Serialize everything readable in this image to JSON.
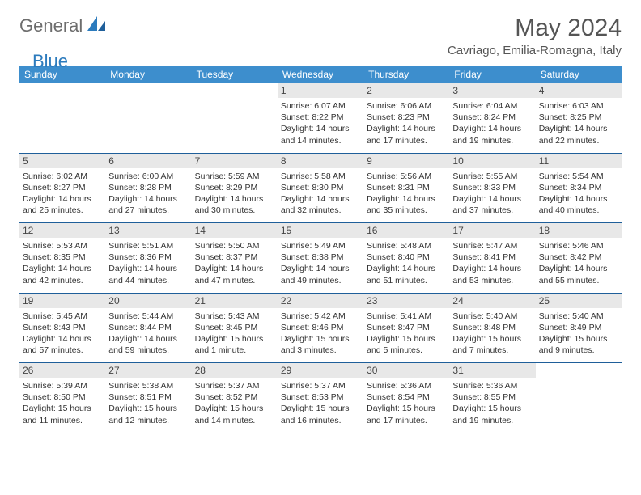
{
  "brand": {
    "part1": "General",
    "part2": "Blue"
  },
  "title": "May 2024",
  "location": "Cavriago, Emilia-Romagna, Italy",
  "colors": {
    "header_bg": "#3d8ecd",
    "header_text": "#ffffff",
    "daynum_bg": "#e8e8e8",
    "week_border": "#1f5f9a",
    "title_color": "#555555",
    "body_text": "#333333",
    "brand_gray": "#6d6d6d",
    "brand_blue": "#2c7bbd",
    "page_bg": "#ffffff"
  },
  "day_headers": [
    "Sunday",
    "Monday",
    "Tuesday",
    "Wednesday",
    "Thursday",
    "Friday",
    "Saturday"
  ],
  "weeks": [
    [
      {
        "n": "",
        "sr": "",
        "ss": "",
        "dl": ""
      },
      {
        "n": "",
        "sr": "",
        "ss": "",
        "dl": ""
      },
      {
        "n": "",
        "sr": "",
        "ss": "",
        "dl": ""
      },
      {
        "n": "1",
        "sr": "Sunrise: 6:07 AM",
        "ss": "Sunset: 8:22 PM",
        "dl": "Daylight: 14 hours and 14 minutes."
      },
      {
        "n": "2",
        "sr": "Sunrise: 6:06 AM",
        "ss": "Sunset: 8:23 PM",
        "dl": "Daylight: 14 hours and 17 minutes."
      },
      {
        "n": "3",
        "sr": "Sunrise: 6:04 AM",
        "ss": "Sunset: 8:24 PM",
        "dl": "Daylight: 14 hours and 19 minutes."
      },
      {
        "n": "4",
        "sr": "Sunrise: 6:03 AM",
        "ss": "Sunset: 8:25 PM",
        "dl": "Daylight: 14 hours and 22 minutes."
      }
    ],
    [
      {
        "n": "5",
        "sr": "Sunrise: 6:02 AM",
        "ss": "Sunset: 8:27 PM",
        "dl": "Daylight: 14 hours and 25 minutes."
      },
      {
        "n": "6",
        "sr": "Sunrise: 6:00 AM",
        "ss": "Sunset: 8:28 PM",
        "dl": "Daylight: 14 hours and 27 minutes."
      },
      {
        "n": "7",
        "sr": "Sunrise: 5:59 AM",
        "ss": "Sunset: 8:29 PM",
        "dl": "Daylight: 14 hours and 30 minutes."
      },
      {
        "n": "8",
        "sr": "Sunrise: 5:58 AM",
        "ss": "Sunset: 8:30 PM",
        "dl": "Daylight: 14 hours and 32 minutes."
      },
      {
        "n": "9",
        "sr": "Sunrise: 5:56 AM",
        "ss": "Sunset: 8:31 PM",
        "dl": "Daylight: 14 hours and 35 minutes."
      },
      {
        "n": "10",
        "sr": "Sunrise: 5:55 AM",
        "ss": "Sunset: 8:33 PM",
        "dl": "Daylight: 14 hours and 37 minutes."
      },
      {
        "n": "11",
        "sr": "Sunrise: 5:54 AM",
        "ss": "Sunset: 8:34 PM",
        "dl": "Daylight: 14 hours and 40 minutes."
      }
    ],
    [
      {
        "n": "12",
        "sr": "Sunrise: 5:53 AM",
        "ss": "Sunset: 8:35 PM",
        "dl": "Daylight: 14 hours and 42 minutes."
      },
      {
        "n": "13",
        "sr": "Sunrise: 5:51 AM",
        "ss": "Sunset: 8:36 PM",
        "dl": "Daylight: 14 hours and 44 minutes."
      },
      {
        "n": "14",
        "sr": "Sunrise: 5:50 AM",
        "ss": "Sunset: 8:37 PM",
        "dl": "Daylight: 14 hours and 47 minutes."
      },
      {
        "n": "15",
        "sr": "Sunrise: 5:49 AM",
        "ss": "Sunset: 8:38 PM",
        "dl": "Daylight: 14 hours and 49 minutes."
      },
      {
        "n": "16",
        "sr": "Sunrise: 5:48 AM",
        "ss": "Sunset: 8:40 PM",
        "dl": "Daylight: 14 hours and 51 minutes."
      },
      {
        "n": "17",
        "sr": "Sunrise: 5:47 AM",
        "ss": "Sunset: 8:41 PM",
        "dl": "Daylight: 14 hours and 53 minutes."
      },
      {
        "n": "18",
        "sr": "Sunrise: 5:46 AM",
        "ss": "Sunset: 8:42 PM",
        "dl": "Daylight: 14 hours and 55 minutes."
      }
    ],
    [
      {
        "n": "19",
        "sr": "Sunrise: 5:45 AM",
        "ss": "Sunset: 8:43 PM",
        "dl": "Daylight: 14 hours and 57 minutes."
      },
      {
        "n": "20",
        "sr": "Sunrise: 5:44 AM",
        "ss": "Sunset: 8:44 PM",
        "dl": "Daylight: 14 hours and 59 minutes."
      },
      {
        "n": "21",
        "sr": "Sunrise: 5:43 AM",
        "ss": "Sunset: 8:45 PM",
        "dl": "Daylight: 15 hours and 1 minute."
      },
      {
        "n": "22",
        "sr": "Sunrise: 5:42 AM",
        "ss": "Sunset: 8:46 PM",
        "dl": "Daylight: 15 hours and 3 minutes."
      },
      {
        "n": "23",
        "sr": "Sunrise: 5:41 AM",
        "ss": "Sunset: 8:47 PM",
        "dl": "Daylight: 15 hours and 5 minutes."
      },
      {
        "n": "24",
        "sr": "Sunrise: 5:40 AM",
        "ss": "Sunset: 8:48 PM",
        "dl": "Daylight: 15 hours and 7 minutes."
      },
      {
        "n": "25",
        "sr": "Sunrise: 5:40 AM",
        "ss": "Sunset: 8:49 PM",
        "dl": "Daylight: 15 hours and 9 minutes."
      }
    ],
    [
      {
        "n": "26",
        "sr": "Sunrise: 5:39 AM",
        "ss": "Sunset: 8:50 PM",
        "dl": "Daylight: 15 hours and 11 minutes."
      },
      {
        "n": "27",
        "sr": "Sunrise: 5:38 AM",
        "ss": "Sunset: 8:51 PM",
        "dl": "Daylight: 15 hours and 12 minutes."
      },
      {
        "n": "28",
        "sr": "Sunrise: 5:37 AM",
        "ss": "Sunset: 8:52 PM",
        "dl": "Daylight: 15 hours and 14 minutes."
      },
      {
        "n": "29",
        "sr": "Sunrise: 5:37 AM",
        "ss": "Sunset: 8:53 PM",
        "dl": "Daylight: 15 hours and 16 minutes."
      },
      {
        "n": "30",
        "sr": "Sunrise: 5:36 AM",
        "ss": "Sunset: 8:54 PM",
        "dl": "Daylight: 15 hours and 17 minutes."
      },
      {
        "n": "31",
        "sr": "Sunrise: 5:36 AM",
        "ss": "Sunset: 8:55 PM",
        "dl": "Daylight: 15 hours and 19 minutes."
      },
      {
        "n": "",
        "sr": "",
        "ss": "",
        "dl": ""
      }
    ]
  ]
}
